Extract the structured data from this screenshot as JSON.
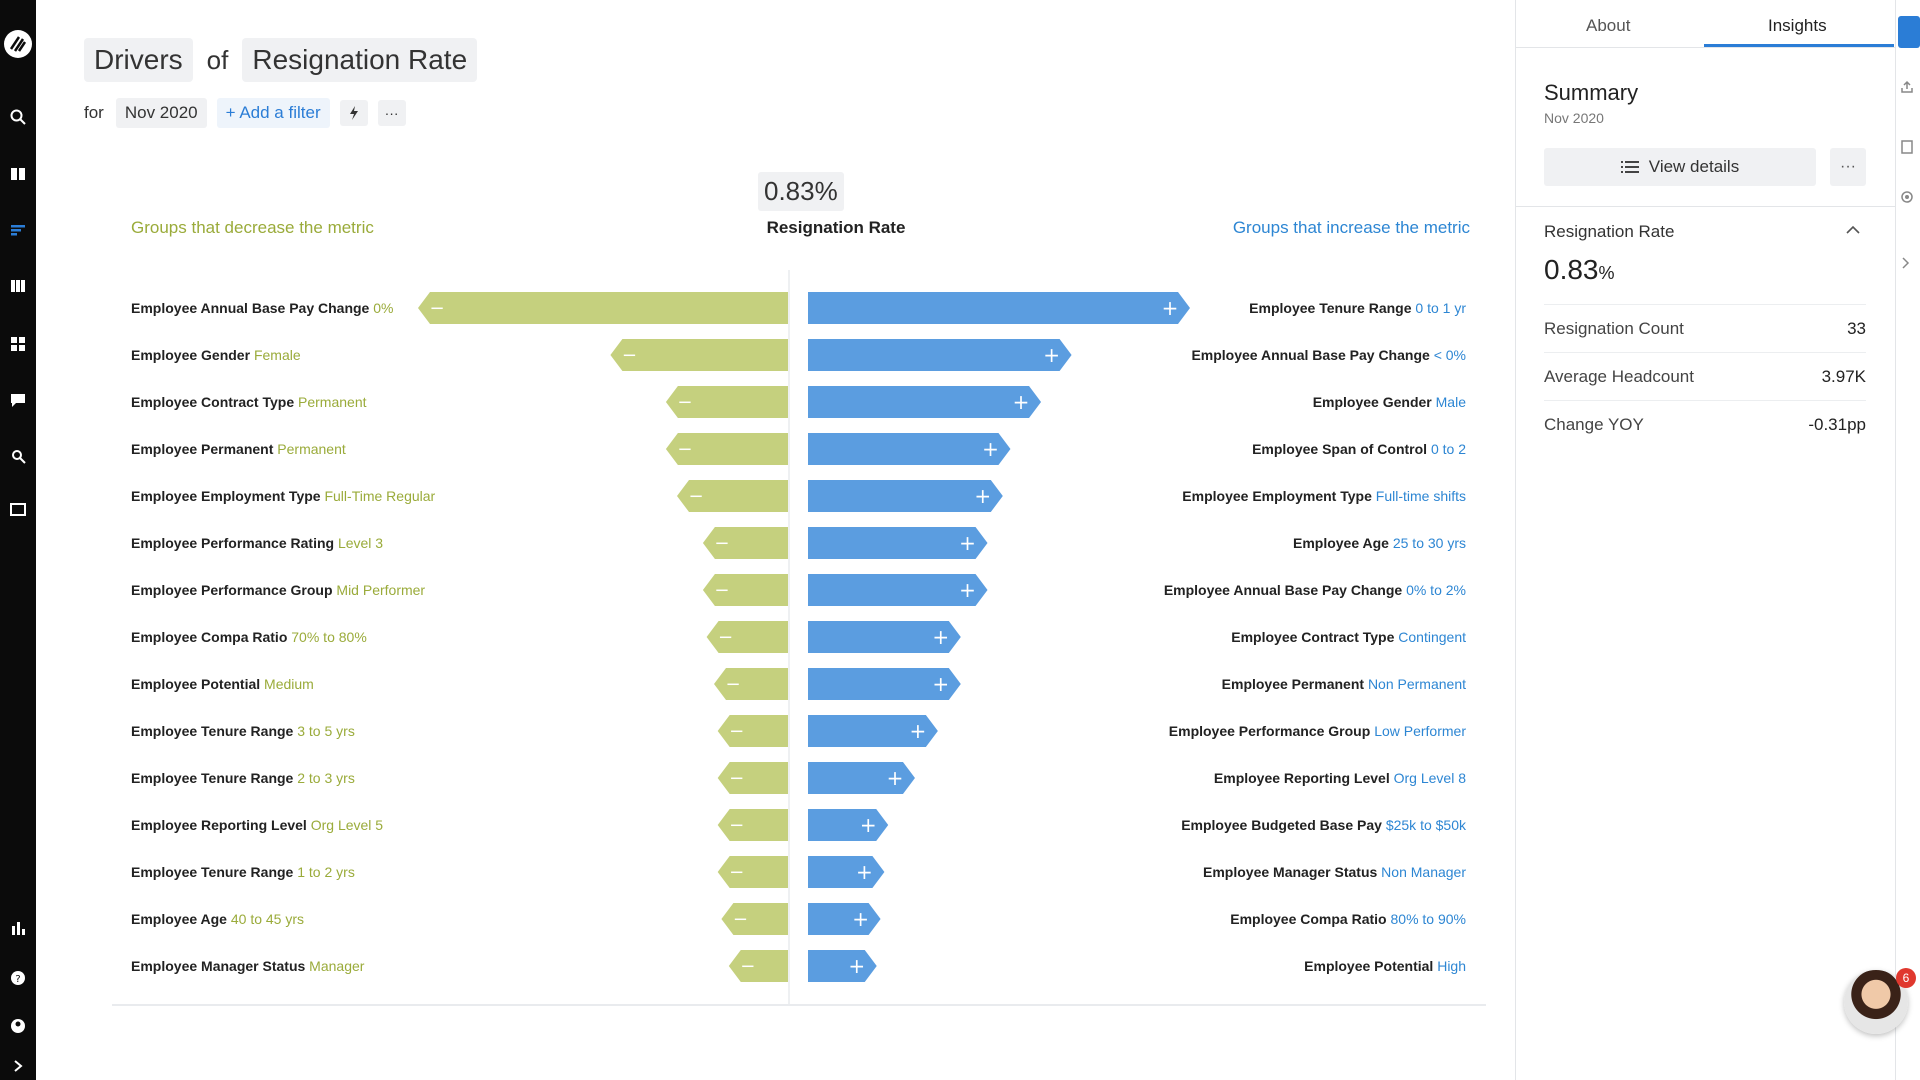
{
  "header": {
    "title_word1": "Drivers",
    "title_of": "of",
    "title_metric": "Resignation Rate",
    "for_label": "for",
    "period": "Nov 2020",
    "add_filter": "+ Add a filter",
    "more": "···"
  },
  "chart": {
    "metric_value": "0.83%",
    "metric_label": "Resignation Rate",
    "decrease_heading": "Groups that decrease the metric",
    "increase_heading": "Groups that increase the metric"
  },
  "chart_data": {
    "type": "bar",
    "title": "Drivers of Resignation Rate",
    "decrease": [
      {
        "label": "Employee Annual Base Pay Change",
        "value": "0%",
        "size": 1.0
      },
      {
        "label": "Employee Gender",
        "value": "Female",
        "size": 0.48
      },
      {
        "label": "Employee Contract Type",
        "value": "Permanent",
        "size": 0.33
      },
      {
        "label": "Employee Permanent",
        "value": "Permanent",
        "size": 0.33
      },
      {
        "label": "Employee Employment Type",
        "value": "Full-Time Regular",
        "size": 0.3
      },
      {
        "label": "Employee Performance Rating",
        "value": "Level 3",
        "size": 0.23
      },
      {
        "label": "Employee Performance Group",
        "value": "Mid Performer",
        "size": 0.23
      },
      {
        "label": "Employee Compa Ratio",
        "value": "70% to 80%",
        "size": 0.22
      },
      {
        "label": "Employee Potential",
        "value": "Medium",
        "size": 0.2
      },
      {
        "label": "Employee Tenure Range",
        "value": "3 to 5 yrs",
        "size": 0.19
      },
      {
        "label": "Employee Tenure Range",
        "value": "2 to 3 yrs",
        "size": 0.19
      },
      {
        "label": "Employee Reporting Level",
        "value": "Org Level 5",
        "size": 0.19
      },
      {
        "label": "Employee Tenure Range",
        "value": "1 to 2 yrs",
        "size": 0.19
      },
      {
        "label": "Employee Age",
        "value": "40 to 45 yrs",
        "size": 0.18
      },
      {
        "label": "Employee Manager Status",
        "value": "Manager",
        "size": 0.16
      }
    ],
    "increase": [
      {
        "label": "Employee Tenure Range",
        "value": "0 to 1 yr",
        "size": 1.0
      },
      {
        "label": "Employee Annual Base Pay Change",
        "value": "< 0%",
        "size": 0.69
      },
      {
        "label": "Employee Gender",
        "value": "Male",
        "size": 0.61
      },
      {
        "label": "Employee Span of Control",
        "value": "0 to 2",
        "size": 0.53
      },
      {
        "label": "Employee Employment Type",
        "value": "Full-time shifts",
        "size": 0.51
      },
      {
        "label": "Employee Age",
        "value": "25 to 30 yrs",
        "size": 0.47
      },
      {
        "label": "Employee Annual Base Pay Change",
        "value": "0% to 2%",
        "size": 0.47
      },
      {
        "label": "Employee Contract Type",
        "value": "Contingent",
        "size": 0.4
      },
      {
        "label": "Employee Permanent",
        "value": "Non Permanent",
        "size": 0.4
      },
      {
        "label": "Employee Performance Group",
        "value": "Low Performer",
        "size": 0.34
      },
      {
        "label": "Employee Reporting Level",
        "value": "Org Level 8",
        "size": 0.28
      },
      {
        "label": "Employee Budgeted Base Pay",
        "value": "$25k to $50k",
        "size": 0.21
      },
      {
        "label": "Employee Manager Status",
        "value": "Non Manager",
        "size": 0.2
      },
      {
        "label": "Employee Compa Ratio",
        "value": "80% to 90%",
        "size": 0.19
      },
      {
        "label": "Employee Potential",
        "value": "High",
        "size": 0.18
      }
    ],
    "colors": {
      "decrease": "#c5d07e",
      "increase": "#5b9de0",
      "decrease_text": "#9aab3a",
      "increase_text": "#2d86d3"
    }
  },
  "panel": {
    "tabs": [
      "About",
      "Insights"
    ],
    "summary_title": "Summary",
    "summary_date": "Nov 2020",
    "view_details": "View details",
    "more": "···",
    "metric_label": "Resignation Rate",
    "metric_value": "0.83",
    "metric_unit": "%",
    "stats": [
      {
        "label": "Resignation Count",
        "value": "33"
      },
      {
        "label": "Average Headcount",
        "value": "3.97K"
      },
      {
        "label": "Change YOY",
        "value": "-0.31pp"
      }
    ]
  },
  "chat": {
    "badge": "6"
  }
}
